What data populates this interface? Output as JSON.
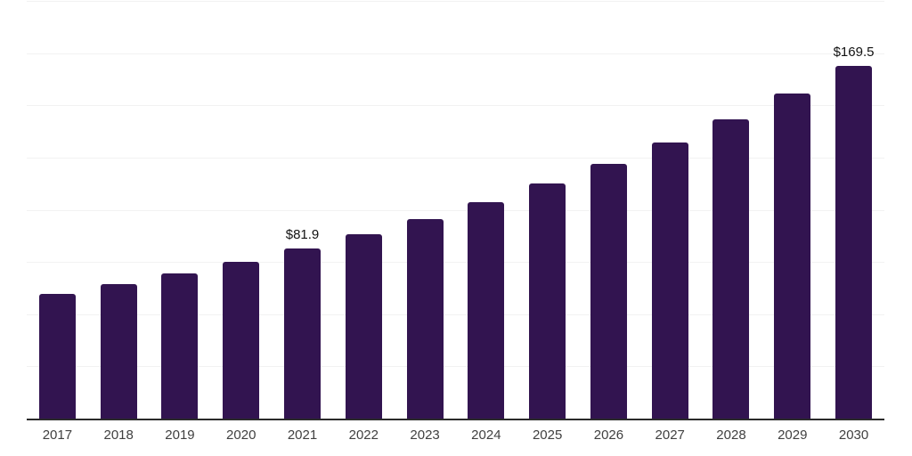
{
  "chart_data": {
    "type": "bar",
    "categories": [
      "2017",
      "2018",
      "2019",
      "2020",
      "2021",
      "2022",
      "2023",
      "2024",
      "2025",
      "2026",
      "2027",
      "2028",
      "2029",
      "2030"
    ],
    "values": [
      60.0,
      64.7,
      70.1,
      75.6,
      81.9,
      88.8,
      96.1,
      104.2,
      112.9,
      122.4,
      132.7,
      143.8,
      155.9,
      169.5
    ],
    "labeled_points": [
      {
        "category": "2021",
        "label": "$81.9"
      },
      {
        "category": "2030",
        "label": "$169.5"
      }
    ],
    "title": "",
    "xlabel": "",
    "ylabel": "",
    "ylim": [
      0,
      200
    ],
    "gridline_step": 25,
    "grid": "on",
    "legend": "none",
    "y_tick_labels_visible": false,
    "colors": {
      "bar": "#321450",
      "gridline": "#f2f2f2",
      "axis_line": "#2b2b2b",
      "value_label": "#111111",
      "tick_label": "#404040",
      "background": "#ffffff"
    }
  }
}
